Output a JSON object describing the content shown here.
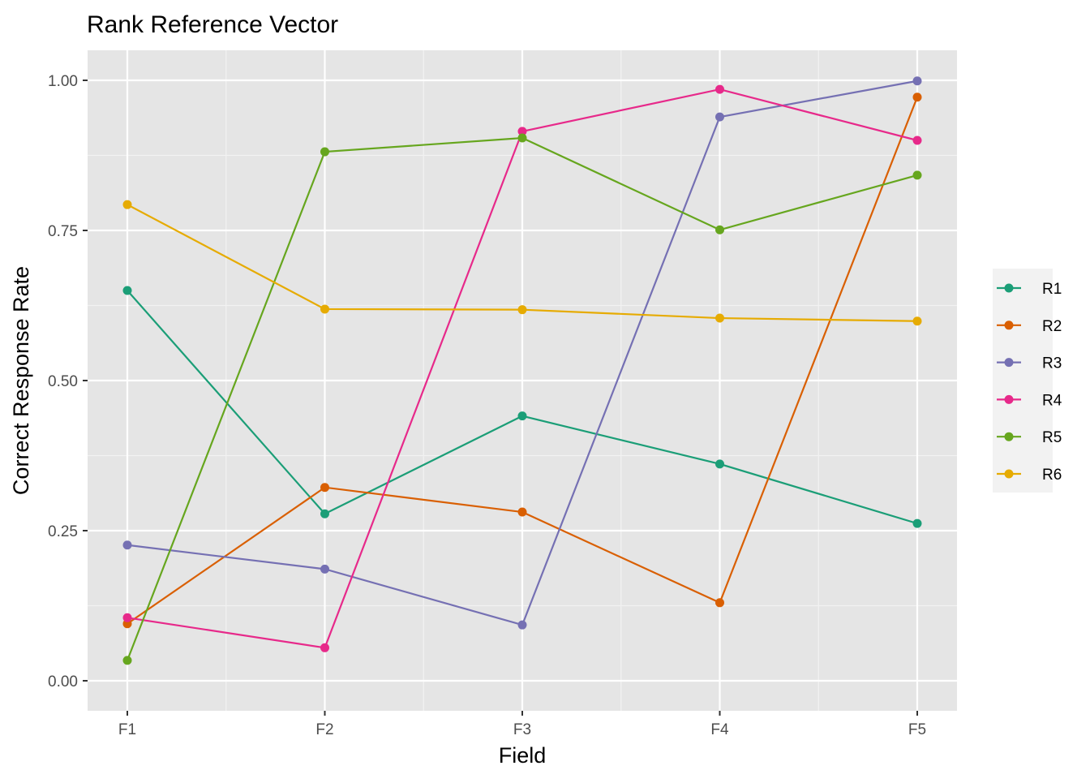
{
  "chart_data": {
    "type": "line",
    "title": "Rank Reference Vector",
    "xlabel": "Field",
    "ylabel": "Correct Response Rate",
    "categories": [
      "F1",
      "F2",
      "F3",
      "F4",
      "F5"
    ],
    "ylim": [
      -0.05,
      1.05
    ],
    "yticks": [
      0,
      0.25,
      0.5,
      0.75,
      1
    ],
    "ytick_labels": [
      "0.00",
      "0.25",
      "0.50",
      "0.75",
      "1.00"
    ],
    "grid": true,
    "legend_position": "right",
    "series": [
      {
        "name": "R1",
        "color": "#1B9E77",
        "values": [
          0.65,
          0.278,
          0.441,
          0.361,
          0.262
        ]
      },
      {
        "name": "R2",
        "color": "#D95F02",
        "values": [
          0.095,
          0.322,
          0.281,
          0.13,
          0.972
        ]
      },
      {
        "name": "R3",
        "color": "#7570B3",
        "values": [
          0.226,
          0.186,
          0.093,
          0.939,
          0.999
        ]
      },
      {
        "name": "R4",
        "color": "#E7298A",
        "values": [
          0.105,
          0.055,
          0.915,
          0.985,
          0.9
        ]
      },
      {
        "name": "R5",
        "color": "#66A61E",
        "values": [
          0.034,
          0.881,
          0.904,
          0.751,
          0.842
        ]
      },
      {
        "name": "R6",
        "color": "#E6AB02",
        "values": [
          0.793,
          0.619,
          0.618,
          0.604,
          0.599
        ]
      }
    ]
  }
}
